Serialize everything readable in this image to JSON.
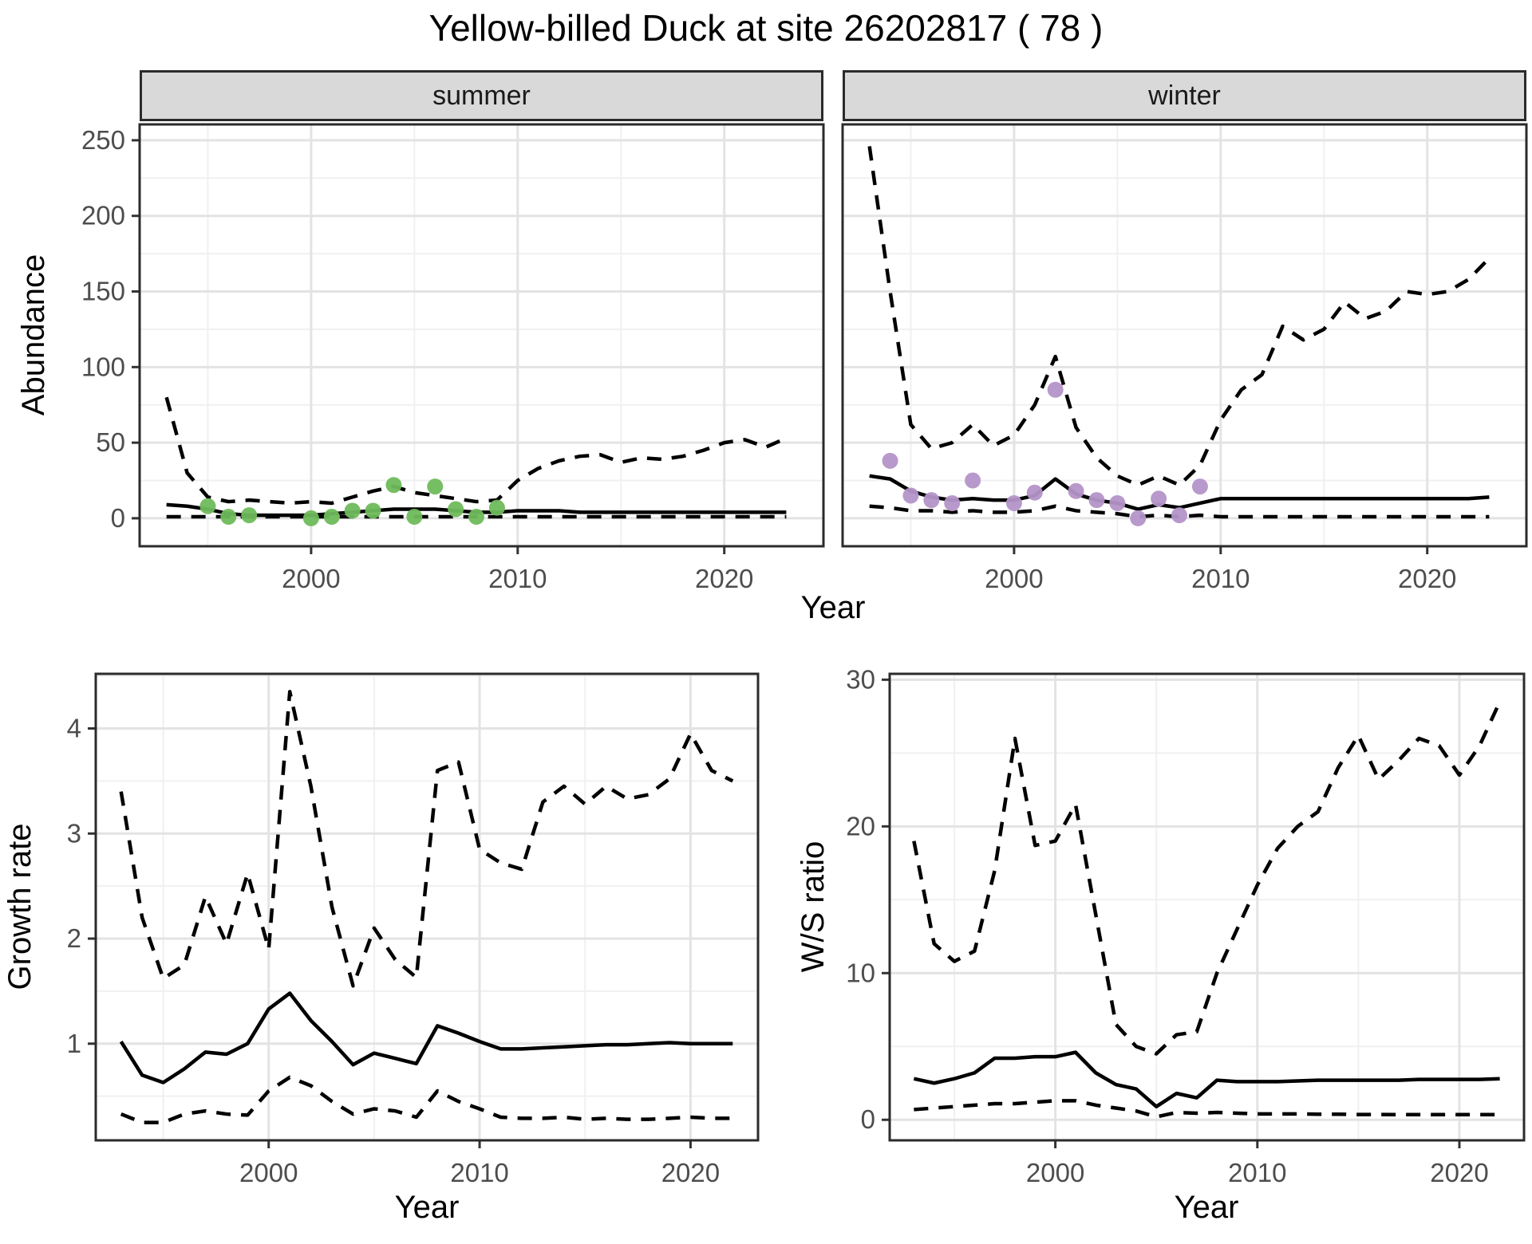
{
  "title": "Yellow-billed Duck at site 26202817 ( 78 )",
  "axis": {
    "y_label_top": "Abundance",
    "y_label_growth": "Growth rate",
    "y_label_ws": "W/S ratio",
    "x_label_top": "Year",
    "x_label_bottom_left": "Year",
    "x_label_bottom_right": "Year"
  },
  "colors": {
    "summer_points": "#6FBB5B",
    "winter_points": "#B493C8",
    "line": "#000000",
    "strip_bg": "#D9D9D9",
    "panel_border": "#2B2B2B",
    "grid_major": "#E3E3E3",
    "grid_minor": "#F0F0F0",
    "tick_text": "#4D4D4D"
  },
  "chart_data": [
    {
      "id": "abundance_summer",
      "type": "line",
      "facet_label": "summer",
      "x": [
        1993,
        1994,
        1995,
        1996,
        1997,
        1998,
        1999,
        2000,
        2001,
        2002,
        2003,
        2004,
        2005,
        2006,
        2007,
        2008,
        2009,
        2010,
        2011,
        2012,
        2013,
        2014,
        2015,
        2016,
        2017,
        2018,
        2019,
        2020,
        2021,
        2022,
        2023
      ],
      "series": [
        {
          "name": "lower_95ci",
          "style": "dashed",
          "values": [
            1,
            1,
            1,
            1,
            1,
            1,
            1,
            1,
            1,
            1,
            1,
            1,
            1,
            1,
            1,
            1,
            1,
            1,
            1,
            1,
            1,
            1,
            1,
            1,
            1,
            1,
            1,
            1,
            1,
            1,
            1
          ]
        },
        {
          "name": "upper_95ci",
          "style": "dashed",
          "values": [
            80,
            30,
            14,
            11,
            12,
            11,
            10,
            11,
            10,
            14,
            18,
            21,
            17,
            15,
            13,
            11,
            12,
            25,
            33,
            38,
            41,
            42,
            37,
            40,
            39,
            41,
            45,
            50,
            52,
            47,
            53
          ]
        },
        {
          "name": "median",
          "style": "solid",
          "values": [
            9,
            8,
            6,
            3,
            2,
            2,
            2,
            2,
            3,
            4,
            5,
            6,
            6,
            6,
            5,
            4,
            4,
            5,
            5,
            5,
            4,
            4,
            4,
            4,
            4,
            4,
            4,
            4,
            4,
            4,
            4
          ]
        }
      ],
      "points": {
        "name": "observed_summer_counts",
        "color": "#6FBB5B",
        "x": [
          1995,
          1996,
          1997,
          2000,
          2001,
          2002,
          2003,
          2004,
          2005,
          2006,
          2007,
          2008,
          2009
        ],
        "y": [
          8,
          1,
          2,
          0,
          1,
          5,
          5,
          22,
          1,
          21,
          6,
          1,
          7
        ]
      },
      "xlim": [
        1991.7,
        2024.8
      ],
      "ylim": [
        -18.5,
        260.5
      ],
      "xticks": [
        2000,
        2010,
        2020
      ],
      "xminor": [
        1995,
        2005,
        2015
      ],
      "yticks": [
        0,
        50,
        100,
        150,
        200,
        250
      ],
      "yminor": [
        25,
        75,
        125,
        175,
        225
      ],
      "show_ylabels": true
    },
    {
      "id": "abundance_winter",
      "type": "line",
      "facet_label": "winter",
      "x": [
        1993,
        1994,
        1995,
        1996,
        1997,
        1998,
        1999,
        2000,
        2001,
        2002,
        2003,
        2004,
        2005,
        2006,
        2007,
        2008,
        2009,
        2010,
        2011,
        2012,
        2013,
        2014,
        2015,
        2016,
        2017,
        2018,
        2019,
        2020,
        2021,
        2022,
        2023
      ],
      "series": [
        {
          "name": "lower_95ci",
          "style": "dashed",
          "values": [
            8,
            7,
            5,
            5,
            4,
            5,
            4,
            4,
            5,
            8,
            5,
            4,
            3,
            1,
            2,
            1,
            2,
            1,
            1,
            1,
            1,
            1,
            1,
            1,
            1,
            1,
            1,
            1,
            1,
            1,
            1
          ]
        },
        {
          "name": "upper_95ci",
          "style": "dashed",
          "values": [
            246,
            150,
            62,
            46,
            50,
            62,
            48,
            55,
            75,
            107,
            60,
            40,
            28,
            22,
            28,
            22,
            35,
            65,
            85,
            95,
            127,
            118,
            125,
            143,
            132,
            137,
            150,
            148,
            150,
            158,
            172
          ]
        },
        {
          "name": "median",
          "style": "solid",
          "values": [
            28,
            26,
            18,
            14,
            12,
            13,
            12,
            12,
            15,
            26,
            16,
            12,
            10,
            6,
            9,
            7,
            10,
            13,
            13,
            13,
            13,
            13,
            13,
            13,
            13,
            13,
            13,
            13,
            13,
            13,
            14
          ]
        }
      ],
      "points": {
        "name": "observed_winter_counts",
        "color": "#B493C8",
        "x": [
          1994,
          1995,
          1996,
          1997,
          1998,
          2000,
          2001,
          2002,
          2003,
          2004,
          2005,
          2006,
          2007,
          2008,
          2009
        ],
        "y": [
          38,
          15,
          12,
          10,
          25,
          10,
          17,
          85,
          18,
          12,
          10,
          0,
          13,
          2,
          21
        ]
      },
      "xlim": [
        1991.7,
        2024.8
      ],
      "ylim": [
        -18.5,
        260.5
      ],
      "xticks": [
        2000,
        2010,
        2020
      ],
      "xminor": [
        1995,
        2005,
        2015
      ],
      "yticks": [
        0,
        50,
        100,
        150,
        200,
        250
      ],
      "yminor": [
        25,
        75,
        125,
        175,
        225
      ],
      "show_ylabels": false
    },
    {
      "id": "growth_rate",
      "type": "line",
      "facet_label": "",
      "x": [
        1993,
        1994,
        1995,
        1996,
        1997,
        1998,
        1999,
        2000,
        2001,
        2002,
        2003,
        2004,
        2005,
        2006,
        2007,
        2008,
        2009,
        2010,
        2011,
        2012,
        2013,
        2014,
        2015,
        2016,
        2017,
        2018,
        2019,
        2020,
        2021,
        2022
      ],
      "series": [
        {
          "name": "lower_95ci",
          "style": "dashed",
          "values": [
            0.33,
            0.25,
            0.25,
            0.33,
            0.36,
            0.33,
            0.32,
            0.55,
            0.68,
            0.6,
            0.45,
            0.33,
            0.38,
            0.36,
            0.3,
            0.55,
            0.45,
            0.38,
            0.3,
            0.29,
            0.29,
            0.3,
            0.28,
            0.29,
            0.28,
            0.28,
            0.29,
            0.3,
            0.29,
            0.29
          ]
        },
        {
          "name": "upper_95ci",
          "style": "dashed",
          "values": [
            3.4,
            2.2,
            1.62,
            1.75,
            2.4,
            1.95,
            2.62,
            1.9,
            4.35,
            3.45,
            2.3,
            1.55,
            2.1,
            1.8,
            1.63,
            3.6,
            3.68,
            2.85,
            2.72,
            2.66,
            3.3,
            3.45,
            3.28,
            3.45,
            3.33,
            3.37,
            3.52,
            3.95,
            3.6,
            3.5
          ]
        },
        {
          "name": "median",
          "style": "solid",
          "values": [
            1.02,
            0.7,
            0.63,
            0.76,
            0.92,
            0.9,
            1.0,
            1.33,
            1.48,
            1.22,
            1.02,
            0.8,
            0.91,
            0.86,
            0.81,
            1.17,
            1.1,
            1.02,
            0.95,
            0.95,
            0.96,
            0.97,
            0.98,
            0.99,
            0.99,
            1.0,
            1.01,
            1.0,
            1.0,
            1.0
          ]
        }
      ],
      "xlim": [
        1991.8,
        2023.2
      ],
      "ylim": [
        0.08,
        4.52
      ],
      "xticks": [
        2000,
        2010,
        2020
      ],
      "xminor": [
        1995,
        2005,
        2015
      ],
      "yticks": [
        1,
        2,
        3,
        4
      ],
      "yminor": [
        0.5,
        1.5,
        2.5,
        3.5,
        4.5
      ],
      "show_ylabels": true
    },
    {
      "id": "ws_ratio",
      "type": "line",
      "facet_label": "",
      "x": [
        1993,
        1994,
        1995,
        1996,
        1997,
        1998,
        1999,
        2000,
        2001,
        2002,
        2003,
        2004,
        2005,
        2006,
        2007,
        2008,
        2009,
        2010,
        2011,
        2012,
        2013,
        2014,
        2015,
        2016,
        2017,
        2018,
        2019,
        2020,
        2021,
        2022
      ],
      "series": [
        {
          "name": "lower_95ci",
          "style": "dashed",
          "values": [
            0.7,
            0.8,
            0.9,
            1.0,
            1.1,
            1.1,
            1.2,
            1.3,
            1.3,
            1.0,
            0.8,
            0.6,
            0.2,
            0.5,
            0.45,
            0.5,
            0.45,
            0.4,
            0.4,
            0.4,
            0.38,
            0.38,
            0.36,
            0.36,
            0.35,
            0.35,
            0.35,
            0.35,
            0.35,
            0.35
          ]
        },
        {
          "name": "upper_95ci",
          "style": "dashed",
          "values": [
            19.0,
            12.0,
            10.8,
            11.5,
            17.0,
            26.0,
            18.7,
            19.0,
            21.5,
            14.0,
            6.5,
            5.0,
            4.5,
            5.8,
            6.0,
            10.0,
            13.0,
            16.0,
            18.5,
            20.0,
            21.0,
            24.0,
            26.2,
            23.2,
            24.5,
            26.0,
            25.5,
            23.5,
            25.5,
            28.5
          ]
        },
        {
          "name": "median",
          "style": "solid",
          "values": [
            2.8,
            2.5,
            2.8,
            3.2,
            4.2,
            4.2,
            4.3,
            4.3,
            4.6,
            3.2,
            2.4,
            2.1,
            0.9,
            1.8,
            1.5,
            2.7,
            2.6,
            2.6,
            2.6,
            2.65,
            2.7,
            2.7,
            2.7,
            2.7,
            2.7,
            2.75,
            2.75,
            2.75,
            2.75,
            2.8
          ]
        }
      ],
      "xlim": [
        1991.8,
        2023.2
      ],
      "ylim": [
        -1.4,
        30.4
      ],
      "xticks": [
        2000,
        2010,
        2020
      ],
      "xminor": [
        1995,
        2005,
        2015
      ],
      "yticks": [
        0,
        10,
        20,
        30
      ],
      "yminor": [
        5,
        15,
        25
      ],
      "show_ylabels": true
    }
  ]
}
